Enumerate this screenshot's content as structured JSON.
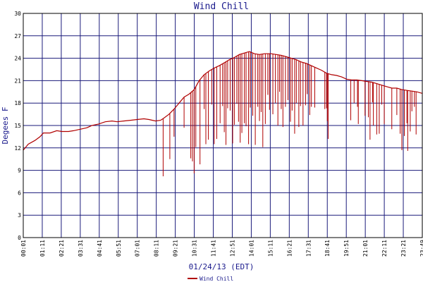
{
  "chart_data": {
    "type": "line",
    "title": "Wind Chill",
    "xlabel": "01/24/13 (EDT)",
    "ylabel": "Degees F",
    "ylim": [
      0,
      30
    ],
    "yticks": [
      "0",
      "3",
      "6",
      "9",
      "12",
      "15",
      "18",
      "21",
      "24",
      "27",
      "30"
    ],
    "xticks": [
      "00:01",
      "01:11",
      "02:21",
      "03:31",
      "04:41",
      "05:51",
      "07:01",
      "08:11",
      "09:21",
      "10:31",
      "11:41",
      "12:51",
      "14:01",
      "15:11",
      "16:21",
      "17:31",
      "18:41",
      "19:51",
      "21:01",
      "22:11",
      "23:21",
      "23:49"
    ],
    "grid": true,
    "legend": "bottom-center",
    "series": [
      {
        "name": "Wind Chill",
        "color": "#b00000",
        "baseline": [
          [
            0.0,
            11.7
          ],
          [
            0.3,
            12.5
          ],
          [
            0.7,
            13.0
          ],
          [
            1.0,
            13.5
          ],
          [
            1.2,
            14.0
          ],
          [
            1.6,
            14.0
          ],
          [
            2.0,
            14.3
          ],
          [
            2.3,
            14.2
          ],
          [
            2.7,
            14.2
          ],
          [
            3.0,
            14.3
          ],
          [
            3.4,
            14.5
          ],
          [
            3.8,
            14.7
          ],
          [
            4.1,
            15.0
          ],
          [
            4.5,
            15.2
          ],
          [
            4.9,
            15.5
          ],
          [
            5.3,
            15.6
          ],
          [
            5.6,
            15.5
          ],
          [
            6.0,
            15.6
          ],
          [
            6.4,
            15.7
          ],
          [
            6.8,
            15.8
          ],
          [
            7.2,
            15.9
          ],
          [
            7.5,
            15.8
          ],
          [
            7.9,
            15.6
          ],
          [
            8.2,
            15.7
          ],
          [
            8.4,
            16.0
          ],
          [
            8.7,
            16.5
          ],
          [
            9.0,
            17.2
          ],
          [
            9.3,
            18.0
          ],
          [
            9.6,
            18.8
          ],
          [
            9.9,
            19.2
          ],
          [
            10.2,
            19.8
          ],
          [
            10.5,
            21.0
          ],
          [
            10.8,
            21.8
          ],
          [
            11.1,
            22.3
          ],
          [
            11.4,
            22.7
          ],
          [
            11.7,
            23.0
          ],
          [
            12.0,
            23.4
          ],
          [
            12.3,
            23.8
          ],
          [
            12.6,
            24.1
          ],
          [
            12.9,
            24.5
          ],
          [
            13.2,
            24.7
          ],
          [
            13.5,
            24.9
          ],
          [
            13.8,
            24.6
          ],
          [
            14.1,
            24.5
          ],
          [
            14.4,
            24.6
          ],
          [
            14.8,
            24.6
          ],
          [
            15.1,
            24.5
          ],
          [
            15.4,
            24.4
          ],
          [
            15.7,
            24.2
          ],
          [
            16.0,
            24.0
          ],
          [
            16.3,
            23.8
          ],
          [
            16.6,
            23.5
          ],
          [
            16.9,
            23.3
          ],
          [
            17.2,
            23.0
          ],
          [
            17.5,
            22.7
          ],
          [
            17.8,
            22.4
          ],
          [
            18.1,
            22.0
          ],
          [
            18.4,
            21.8
          ],
          [
            18.7,
            21.7
          ],
          [
            19.0,
            21.5
          ],
          [
            19.3,
            21.2
          ],
          [
            19.6,
            21.1
          ],
          [
            19.9,
            21.1
          ],
          [
            20.2,
            21.0
          ],
          [
            20.5,
            20.9
          ],
          [
            20.8,
            20.8
          ],
          [
            21.1,
            20.6
          ],
          [
            21.4,
            20.4
          ],
          [
            21.7,
            20.2
          ],
          [
            22.0,
            20.0
          ],
          [
            22.3,
            20.0
          ],
          [
            22.6,
            19.8
          ],
          [
            22.9,
            19.7
          ],
          [
            23.2,
            19.6
          ],
          [
            23.5,
            19.5
          ],
          [
            23.82,
            19.3
          ]
        ],
        "dips": [
          [
            8.35,
            8.2
          ],
          [
            8.75,
            10.5
          ],
          [
            9.0,
            13.5
          ],
          [
            9.6,
            14.7
          ],
          [
            10.0,
            10.6
          ],
          [
            10.1,
            10.2
          ],
          [
            10.2,
            8.6
          ],
          [
            10.3,
            12.1
          ],
          [
            10.55,
            9.8
          ],
          [
            10.8,
            17.2
          ],
          [
            10.9,
            12.5
          ],
          [
            11.05,
            13.1
          ],
          [
            11.25,
            17.8
          ],
          [
            11.4,
            12.5
          ],
          [
            11.55,
            13.2
          ],
          [
            11.75,
            15.3
          ],
          [
            11.9,
            17.6
          ],
          [
            12.0,
            14.1
          ],
          [
            12.1,
            12.4
          ],
          [
            12.2,
            17.3
          ],
          [
            12.35,
            17.0
          ],
          [
            12.5,
            12.6
          ],
          [
            12.6,
            15.1
          ],
          [
            12.75,
            17.9
          ],
          [
            12.85,
            15.5
          ],
          [
            12.95,
            12.7
          ],
          [
            13.05,
            14.0
          ],
          [
            13.2,
            15.3
          ],
          [
            13.3,
            14.9
          ],
          [
            13.45,
            12.5
          ],
          [
            13.55,
            17.4
          ],
          [
            13.7,
            16.3
          ],
          [
            13.85,
            12.4
          ],
          [
            14.0,
            17.5
          ],
          [
            14.1,
            15.6
          ],
          [
            14.2,
            16.8
          ],
          [
            14.3,
            12.1
          ],
          [
            14.45,
            15.2
          ],
          [
            14.6,
            19.1
          ],
          [
            14.7,
            17.1
          ],
          [
            14.9,
            16.5
          ],
          [
            15.05,
            18.0
          ],
          [
            15.2,
            15.0
          ],
          [
            15.3,
            19.5
          ],
          [
            15.4,
            17.2
          ],
          [
            15.5,
            14.8
          ],
          [
            15.65,
            17.5
          ],
          [
            15.8,
            18.4
          ],
          [
            15.95,
            15.5
          ],
          [
            16.05,
            17.0
          ],
          [
            16.2,
            13.9
          ],
          [
            16.3,
            18.0
          ],
          [
            16.45,
            14.8
          ],
          [
            16.55,
            17.6
          ],
          [
            16.7,
            15.0
          ],
          [
            16.85,
            17.7
          ],
          [
            16.95,
            19.2
          ],
          [
            17.1,
            16.4
          ],
          [
            17.2,
            17.5
          ],
          [
            17.4,
            17.4
          ],
          [
            18.0,
            17.2
          ],
          [
            18.1,
            17.3
          ],
          [
            18.15,
            15.6
          ],
          [
            18.2,
            13.2
          ],
          [
            19.55,
            15.7
          ],
          [
            19.75,
            18.0
          ],
          [
            19.95,
            17.5
          ],
          [
            20.0,
            15.2
          ],
          [
            20.4,
            16.3
          ],
          [
            20.6,
            16.1
          ],
          [
            20.7,
            13.1
          ],
          [
            20.85,
            18.1
          ],
          [
            20.9,
            15.0
          ],
          [
            21.1,
            13.8
          ],
          [
            21.25,
            13.9
          ],
          [
            21.4,
            17.8
          ],
          [
            21.55,
            15.2
          ],
          [
            22.0,
            14.5
          ],
          [
            22.3,
            16.4
          ],
          [
            22.5,
            13.9
          ],
          [
            22.6,
            11.7
          ],
          [
            22.75,
            13.6
          ],
          [
            22.9,
            15.3
          ],
          [
            22.95,
            11.6
          ],
          [
            23.1,
            14.2
          ],
          [
            23.2,
            16.9
          ],
          [
            23.35,
            17.5
          ],
          [
            23.45,
            13.8
          ]
        ]
      }
    ]
  }
}
